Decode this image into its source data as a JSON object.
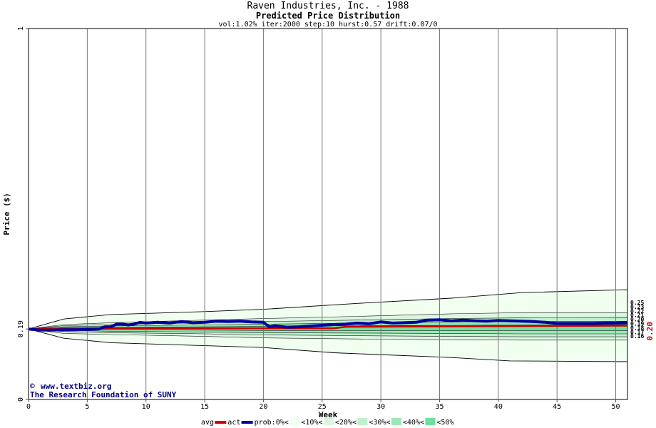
{
  "chart_data": {
    "type": "line",
    "title": "Raven Industries, Inc. - 1988",
    "subtitle": "Predicted Price Distribution",
    "params": "vol:1.02% iter:2000 step:10 hurst:0.57 drift:0.07/0",
    "xlabel": "Week",
    "ylabel": "Price ($)",
    "xlim": [
      0,
      51
    ],
    "ylim": [
      0,
      1
    ],
    "x_ticks": [
      0,
      5,
      10,
      15,
      20,
      25,
      30,
      35,
      40,
      45,
      50
    ],
    "y_tick_labels": [
      {
        "value": 0,
        "label": "0"
      },
      {
        "value": 0.19,
        "label": "0.19"
      },
      {
        "value": 1,
        "label": "1"
      }
    ],
    "grid": true,
    "start_price": 0.19,
    "last_price_label": "0.20",
    "right_labels": [
      "0.25",
      "0.23",
      "0.22",
      "0.21",
      "0.20",
      "0.19",
      "0.18",
      "0.17",
      "0.16"
    ],
    "bands": [
      {
        "name": "<10%",
        "color": "#f0fff0",
        "upper": [
          [
            0,
            0.19
          ],
          [
            3,
            0.217
          ],
          [
            7,
            0.229
          ],
          [
            15,
            0.237
          ],
          [
            20,
            0.243
          ],
          [
            28,
            0.259
          ],
          [
            36,
            0.273
          ],
          [
            42,
            0.288
          ],
          [
            51,
            0.296
          ]
        ],
        "lower": [
          [
            0,
            0.19
          ],
          [
            3,
            0.165
          ],
          [
            7,
            0.153
          ],
          [
            15,
            0.145
          ],
          [
            20,
            0.14
          ],
          [
            26,
            0.126
          ],
          [
            36,
            0.113
          ],
          [
            41,
            0.104
          ],
          [
            51,
            0.102
          ]
        ]
      },
      {
        "name": "<20%",
        "color": "#ddf6e2",
        "upper": [
          [
            0,
            0.19
          ],
          [
            3,
            0.202
          ],
          [
            7,
            0.207
          ],
          [
            15,
            0.214
          ],
          [
            20,
            0.218
          ],
          [
            28,
            0.224
          ],
          [
            36,
            0.231
          ],
          [
            42,
            0.234
          ],
          [
            51,
            0.234
          ]
        ],
        "lower": [
          [
            0,
            0.19
          ],
          [
            3,
            0.178
          ],
          [
            7,
            0.175
          ],
          [
            15,
            0.17
          ],
          [
            20,
            0.166
          ],
          [
            28,
            0.163
          ],
          [
            36,
            0.161
          ],
          [
            42,
            0.16
          ],
          [
            51,
            0.16
          ]
        ]
      },
      {
        "name": "<30%",
        "color": "#bff0cc",
        "upper": [
          [
            0,
            0.19
          ],
          [
            3,
            0.199
          ],
          [
            7,
            0.202
          ],
          [
            15,
            0.207
          ],
          [
            20,
            0.21
          ],
          [
            28,
            0.214
          ],
          [
            36,
            0.218
          ],
          [
            42,
            0.22
          ],
          [
            51,
            0.221
          ]
        ],
        "lower": [
          [
            0,
            0.19
          ],
          [
            3,
            0.183
          ],
          [
            7,
            0.18
          ],
          [
            15,
            0.177
          ],
          [
            20,
            0.174
          ],
          [
            28,
            0.172
          ],
          [
            36,
            0.17
          ],
          [
            42,
            0.169
          ],
          [
            51,
            0.169
          ]
        ]
      },
      {
        "name": "<40%",
        "color": "#9ae8b4",
        "upper": [
          [
            0,
            0.19
          ],
          [
            3,
            0.196
          ],
          [
            7,
            0.198
          ],
          [
            15,
            0.201
          ],
          [
            20,
            0.203
          ],
          [
            28,
            0.206
          ],
          [
            36,
            0.209
          ],
          [
            42,
            0.21
          ],
          [
            51,
            0.211
          ]
        ],
        "lower": [
          [
            0,
            0.19
          ],
          [
            3,
            0.186
          ],
          [
            7,
            0.184
          ],
          [
            15,
            0.182
          ],
          [
            20,
            0.18
          ],
          [
            28,
            0.179
          ],
          [
            36,
            0.178
          ],
          [
            42,
            0.177
          ],
          [
            51,
            0.177
          ]
        ]
      },
      {
        "name": "<50%",
        "color": "#6ee09c",
        "upper": [
          [
            0,
            0.19
          ],
          [
            3,
            0.193
          ],
          [
            7,
            0.194
          ],
          [
            15,
            0.196
          ],
          [
            20,
            0.197
          ],
          [
            28,
            0.199
          ],
          [
            36,
            0.2
          ],
          [
            42,
            0.201
          ],
          [
            51,
            0.202
          ]
        ],
        "lower": [
          [
            0,
            0.19
          ],
          [
            3,
            0.189
          ],
          [
            7,
            0.188
          ],
          [
            15,
            0.187
          ],
          [
            20,
            0.186
          ],
          [
            28,
            0.186
          ],
          [
            36,
            0.186
          ],
          [
            42,
            0.186
          ],
          [
            51,
            0.186
          ]
        ]
      }
    ],
    "series": [
      {
        "name": "avg",
        "color": "#cc0000",
        "points": [
          [
            0,
            0.19
          ],
          [
            2,
            0.19
          ],
          [
            3,
            0.192
          ],
          [
            26,
            0.192
          ],
          [
            27,
            0.196
          ],
          [
            51,
            0.199
          ]
        ]
      },
      {
        "name": "act",
        "color": "#0000a0",
        "points": [
          [
            0,
            0.19
          ],
          [
            1,
            0.187
          ],
          [
            2,
            0.187
          ],
          [
            3,
            0.188
          ],
          [
            4,
            0.188
          ],
          [
            5,
            0.189
          ],
          [
            6,
            0.19
          ],
          [
            6.5,
            0.196
          ],
          [
            7,
            0.196
          ],
          [
            7.5,
            0.203
          ],
          [
            8,
            0.203
          ],
          [
            8.5,
            0.201
          ],
          [
            9,
            0.203
          ],
          [
            9.5,
            0.208
          ],
          [
            10,
            0.206
          ],
          [
            11,
            0.208
          ],
          [
            12,
            0.206
          ],
          [
            13,
            0.21
          ],
          [
            14,
            0.207
          ],
          [
            15,
            0.208
          ],
          [
            16,
            0.211
          ],
          [
            17,
            0.21
          ],
          [
            18,
            0.211
          ],
          [
            19,
            0.209
          ],
          [
            20,
            0.208
          ],
          [
            20.5,
            0.196
          ],
          [
            21,
            0.198
          ],
          [
            22,
            0.195
          ],
          [
            23,
            0.196
          ],
          [
            24,
            0.198
          ],
          [
            25,
            0.2
          ],
          [
            26,
            0.202
          ],
          [
            27,
            0.203
          ],
          [
            28,
            0.206
          ],
          [
            29,
            0.204
          ],
          [
            30,
            0.209
          ],
          [
            31,
            0.206
          ],
          [
            32,
            0.207
          ],
          [
            33,
            0.208
          ],
          [
            34,
            0.214
          ],
          [
            35,
            0.215
          ],
          [
            36,
            0.212
          ],
          [
            37,
            0.214
          ],
          [
            38,
            0.212
          ],
          [
            39,
            0.211
          ],
          [
            40,
            0.213
          ],
          [
            41,
            0.212
          ],
          [
            42,
            0.211
          ],
          [
            43,
            0.21
          ],
          [
            44,
            0.208
          ],
          [
            45,
            0.205
          ],
          [
            46,
            0.205
          ],
          [
            47,
            0.205
          ],
          [
            48,
            0.205
          ],
          [
            49,
            0.206
          ],
          [
            50,
            0.206
          ],
          [
            51,
            0.207
          ]
        ]
      }
    ],
    "legend": {
      "position": "bottom",
      "items": [
        {
          "label": "avg",
          "kind": "line",
          "color": "#cc0000"
        },
        {
          "label": "act",
          "kind": "line",
          "color": "#0000a0"
        },
        {
          "label": "prob:0%<",
          "kind": "swatch",
          "color": "#ffffff"
        },
        {
          "label": "<10%<",
          "kind": "swatch",
          "color": "#f0fff0"
        },
        {
          "label": "<20%<",
          "kind": "swatch",
          "color": "#ddf6e2"
        },
        {
          "label": "<30%<",
          "kind": "swatch",
          "color": "#bff0cc"
        },
        {
          "label": "<40%<",
          "kind": "swatch",
          "color": "#9ae8b4"
        },
        {
          "label": "<50%",
          "kind": "swatch",
          "color": "#6ee09c"
        }
      ]
    }
  },
  "watermark": {
    "site": "www.textbiz.org",
    "copyright_symbol": "©",
    "org": "The Research Foundation of SUNY"
  }
}
